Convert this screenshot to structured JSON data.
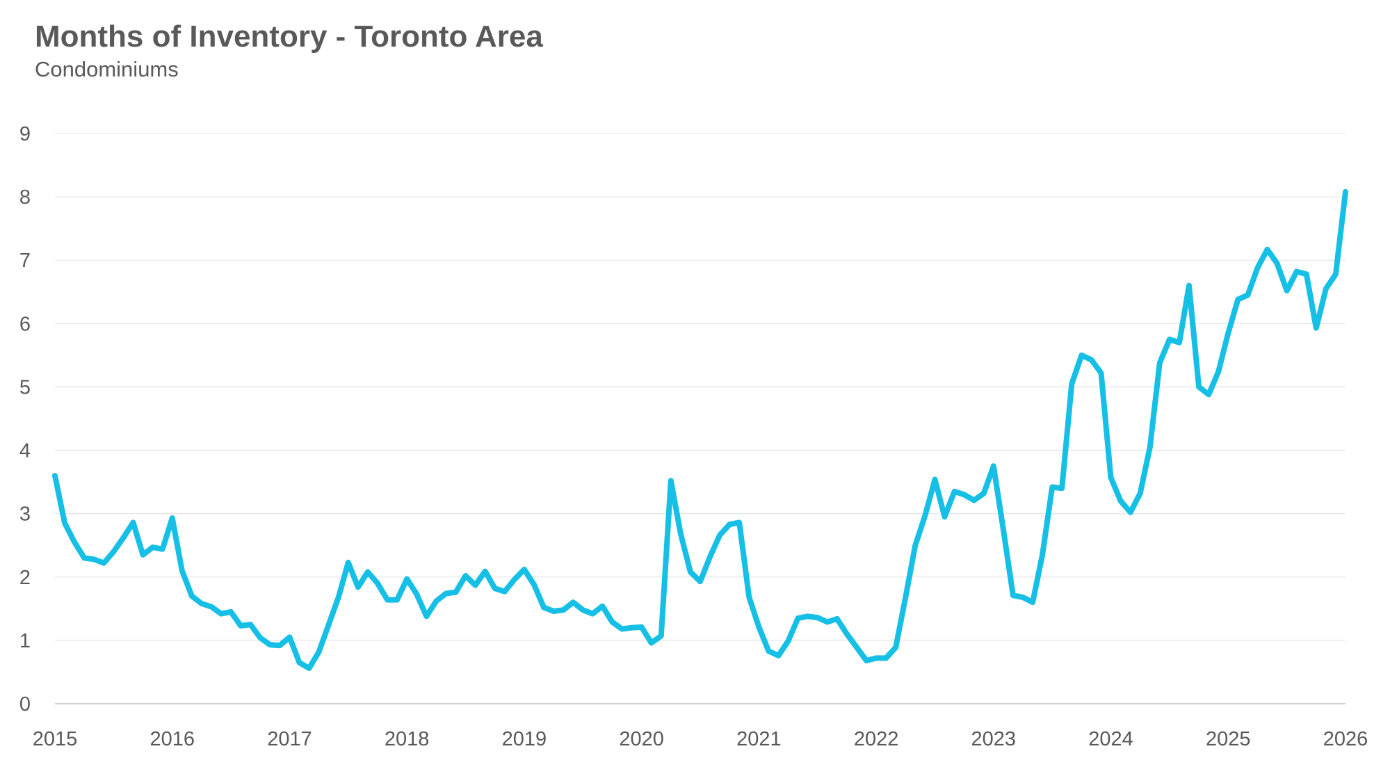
{
  "chart_data": {
    "type": "line",
    "title": "Months of Inventory - Toronto Area",
    "subtitle": "Condominiums",
    "xlabel": "",
    "ylabel": "",
    "xlim": [
      2015,
      2026
    ],
    "ylim": [
      0,
      9
    ],
    "yticks": [
      0,
      1,
      2,
      3,
      4,
      5,
      6,
      7,
      8,
      9
    ],
    "xticks": [
      "2015",
      "2016",
      "2017",
      "2018",
      "2019",
      "2020",
      "2021",
      "2022",
      "2023",
      "2024",
      "2025",
      "2026"
    ],
    "grid": true,
    "color": "#16BFE5",
    "series": [
      {
        "name": "Condominiums",
        "values": [
          3.6,
          2.85,
          2.55,
          2.3,
          2.28,
          2.22,
          2.4,
          2.62,
          2.86,
          2.35,
          2.47,
          2.44,
          2.93,
          2.1,
          1.7,
          1.58,
          1.53,
          1.42,
          1.45,
          1.23,
          1.25,
          1.04,
          0.93,
          0.92,
          1.05,
          0.65,
          0.56,
          0.82,
          1.25,
          1.68,
          2.23,
          1.84,
          2.08,
          1.9,
          1.64,
          1.64,
          1.97,
          1.73,
          1.38,
          1.62,
          1.74,
          1.76,
          2.02,
          1.87,
          2.09,
          1.82,
          1.77,
          1.96,
          2.12,
          1.88,
          1.52,
          1.46,
          1.48,
          1.6,
          1.48,
          1.42,
          1.54,
          1.29,
          1.18,
          1.2,
          1.21,
          0.96,
          1.07,
          3.52,
          2.68,
          2.08,
          1.93,
          2.32,
          2.66,
          2.83,
          2.86,
          1.68,
          1.21,
          0.83,
          0.76,
          0.99,
          1.35,
          1.38,
          1.36,
          1.29,
          1.34,
          1.1,
          0.89,
          0.68,
          0.72,
          0.72,
          0.89,
          1.68,
          2.5,
          2.97,
          3.54,
          2.95,
          3.35,
          3.3,
          3.21,
          3.32,
          3.75,
          2.75,
          1.71,
          1.68,
          1.6,
          2.35,
          3.42,
          3.4,
          5.05,
          5.5,
          5.43,
          5.22,
          3.57,
          3.2,
          3.02,
          3.32,
          4.05,
          5.38,
          5.75,
          5.7,
          6.6,
          5.0,
          4.88,
          5.24,
          5.85,
          6.38,
          6.45,
          6.88,
          7.17,
          6.95,
          6.52,
          6.82,
          6.78,
          5.93,
          6.55,
          6.78,
          8.08
        ]
      }
    ]
  }
}
